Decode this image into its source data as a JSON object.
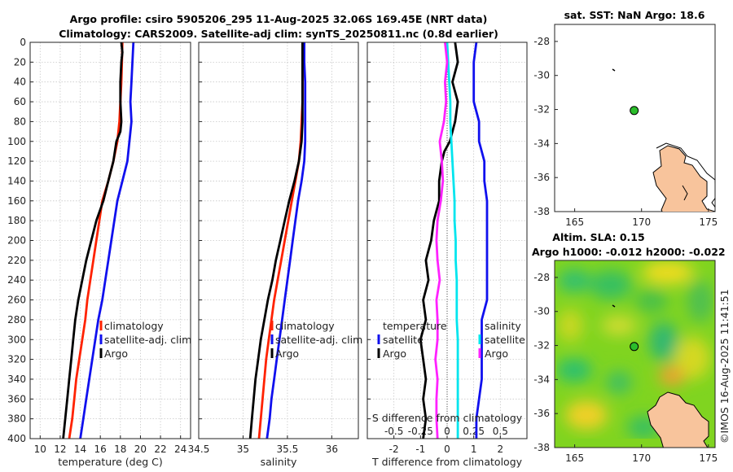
{
  "titles": {
    "line1": "Argo profile: csiro 5905206_295 11-Aug-2025 32.06S 169.45E (NRT data)",
    "line2": "Climatology: CARS2009. Satellite-adj clim: synTS_20250811.nc (0.8d earlier)",
    "sst": "sat. SST: NaN Argo: 18.6",
    "sla": "Altim. SLA: 0.15",
    "sla2": "Argo h1000: -0.012 h2000: -0.022",
    "credit": "©IMOS 16-Aug-2025 11:41:51"
  },
  "colors": {
    "climatology": "#ff2200",
    "satellite": "#1010ee",
    "argo": "#000000",
    "sal_diff": "#00e5ee",
    "temp_diff": "#ff22ff",
    "land": "#f8c49c",
    "float_marker": "#2bbd2b"
  },
  "chart_data": [
    {
      "type": "line",
      "name": "temperature",
      "xlabel": "temperature (deg C)",
      "ylabel": "",
      "xlim": [
        9,
        25
      ],
      "ylim": [
        400,
        0
      ],
      "xticks": [
        "10",
        "12",
        "14",
        "16",
        "18",
        "20",
        "22",
        "24"
      ],
      "yticks": [
        "0",
        "20",
        "40",
        "60",
        "80",
        "100",
        "120",
        "140",
        "160",
        "180",
        "200",
        "220",
        "240",
        "260",
        "280",
        "300",
        "320",
        "340",
        "360",
        "380",
        "400"
      ],
      "legend": [
        "climatology",
        "satellite-adj. clim",
        "Argo"
      ],
      "series": [
        {
          "name": "climatology",
          "color": "climatology",
          "depth": [
            0,
            20,
            40,
            60,
            80,
            100,
            120,
            140,
            160,
            180,
            200,
            220,
            240,
            260,
            280,
            300,
            320,
            340,
            360,
            380,
            400
          ],
          "values": [
            18.2,
            18.15,
            18.1,
            18.0,
            17.9,
            17.7,
            17.3,
            16.8,
            16.2,
            15.9,
            15.6,
            15.3,
            15.0,
            14.7,
            14.5,
            14.2,
            13.9,
            13.6,
            13.4,
            13.2,
            12.9
          ]
        },
        {
          "name": "satellite-adj. clim",
          "color": "satellite",
          "depth": [
            0,
            20,
            40,
            60,
            80,
            100,
            120,
            140,
            160,
            180,
            200,
            220,
            240,
            260,
            280,
            300,
            320,
            340,
            360,
            380,
            400
          ],
          "values": [
            19.3,
            19.2,
            19.1,
            19.0,
            19.1,
            18.9,
            18.7,
            18.2,
            17.7,
            17.4,
            17.1,
            16.8,
            16.5,
            16.2,
            15.8,
            15.5,
            15.2,
            14.9,
            14.6,
            14.3,
            14.0
          ]
        },
        {
          "name": "Argo",
          "color": "argo",
          "depth": [
            0,
            10,
            20,
            40,
            60,
            80,
            90,
            100,
            120,
            140,
            160,
            180,
            200,
            220,
            240,
            260,
            280,
            300,
            320,
            340,
            360,
            380,
            400
          ],
          "values": [
            18.1,
            18.2,
            18.1,
            18.0,
            18.0,
            18.1,
            18.0,
            17.6,
            17.3,
            16.8,
            16.3,
            15.6,
            15.1,
            14.6,
            14.2,
            13.8,
            13.5,
            13.3,
            13.1,
            12.9,
            12.7,
            12.5,
            12.3
          ]
        }
      ]
    },
    {
      "type": "line",
      "name": "salinity",
      "xlabel": "salinity",
      "ylabel": "",
      "xlim": [
        34.5,
        36.3
      ],
      "ylim": [
        400,
        0
      ],
      "xticks": [
        "34.5",
        "35",
        "35.5",
        "36"
      ],
      "legend": [
        "climatology",
        "satellite-adj. clim",
        "Argo"
      ],
      "series": [
        {
          "name": "climatology",
          "color": "climatology",
          "depth": [
            0,
            20,
            40,
            60,
            80,
            100,
            120,
            140,
            160,
            180,
            200,
            220,
            240,
            260,
            280,
            300,
            320,
            340,
            360,
            380,
            400
          ],
          "values": [
            35.67,
            35.67,
            35.67,
            35.67,
            35.66,
            35.65,
            35.63,
            35.59,
            35.55,
            35.51,
            35.47,
            35.43,
            35.39,
            35.35,
            35.32,
            35.29,
            35.26,
            35.24,
            35.22,
            35.2,
            35.18
          ]
        },
        {
          "name": "satellite-adj. clim",
          "color": "satellite",
          "depth": [
            0,
            20,
            40,
            60,
            80,
            100,
            120,
            140,
            160,
            180,
            200,
            220,
            240,
            260,
            280,
            300,
            320,
            340,
            360,
            380,
            400
          ],
          "values": [
            35.69,
            35.69,
            35.7,
            35.7,
            35.7,
            35.7,
            35.69,
            35.66,
            35.62,
            35.59,
            35.56,
            35.53,
            35.5,
            35.47,
            35.44,
            35.41,
            35.38,
            35.35,
            35.32,
            35.3,
            35.27
          ]
        },
        {
          "name": "Argo",
          "color": "argo",
          "depth": [
            0,
            20,
            40,
            60,
            80,
            100,
            120,
            140,
            160,
            180,
            200,
            220,
            240,
            260,
            280,
            300,
            320,
            340,
            360,
            380,
            400
          ],
          "values": [
            35.67,
            35.67,
            35.67,
            35.67,
            35.67,
            35.66,
            35.63,
            35.58,
            35.52,
            35.47,
            35.42,
            35.37,
            35.33,
            35.28,
            35.24,
            35.2,
            35.17,
            35.14,
            35.12,
            35.1,
            35.08
          ]
        }
      ]
    },
    {
      "type": "line",
      "name": "difference",
      "xlabel": "T difference from climatology",
      "xlabel2": "S difference from climatology",
      "xlim": [
        -3,
        3
      ],
      "ylim": [
        400,
        0
      ],
      "xticks": [
        "-2",
        "-1",
        "0",
        "1",
        "2"
      ],
      "xticks2": [
        "-0.5",
        "-0.25",
        "0",
        "0.25",
        "0.5"
      ],
      "legend_left_title": "temperature",
      "legend_left": [
        "satellite",
        "Argo"
      ],
      "legend_right_title": "salinity",
      "legend_right": [
        "satellite",
        "Argo"
      ],
      "series": [
        {
          "name": "T satellite",
          "color": "satellite",
          "depth": [
            0,
            20,
            40,
            60,
            80,
            100,
            120,
            140,
            160,
            180,
            200,
            220,
            240,
            260,
            280,
            300,
            320,
            340,
            360,
            380,
            400
          ],
          "values": [
            1.1,
            1.0,
            1.0,
            1.0,
            1.2,
            1.2,
            1.4,
            1.4,
            1.5,
            1.5,
            1.5,
            1.5,
            1.5,
            1.5,
            1.3,
            1.3,
            1.3,
            1.3,
            1.2,
            1.1,
            1.1
          ]
        },
        {
          "name": "T Argo",
          "color": "argo",
          "depth": [
            0,
            20,
            40,
            60,
            80,
            100,
            110,
            120,
            140,
            160,
            180,
            200,
            220,
            240,
            260,
            280,
            300,
            320,
            340,
            360,
            380,
            400
          ],
          "values": [
            0.3,
            0.4,
            0.2,
            0.4,
            0.3,
            0.1,
            -0.1,
            -0.2,
            -0.3,
            -0.3,
            -0.5,
            -0.6,
            -0.8,
            -0.7,
            -0.9,
            -0.8,
            -1.0,
            -0.9,
            -0.8,
            -0.9,
            -0.8,
            -0.9
          ]
        },
        {
          "name": "S satellite",
          "color": "sal_diff",
          "depth": [
            0,
            20,
            40,
            60,
            80,
            100,
            120,
            140,
            160,
            180,
            200,
            220,
            240,
            260,
            280,
            300,
            320,
            340,
            360,
            380,
            400
          ],
          "values": [
            0.0,
            0.01,
            0.02,
            0.03,
            0.03,
            0.04,
            0.05,
            0.06,
            0.07,
            0.07,
            0.08,
            0.08,
            0.09,
            0.09,
            0.09,
            0.1,
            0.1,
            0.1,
            0.1,
            0.1,
            0.1
          ]
        },
        {
          "name": "S Argo",
          "color": "temp_diff",
          "depth": [
            0,
            20,
            40,
            60,
            80,
            100,
            120,
            140,
            160,
            180,
            200,
            220,
            240,
            260,
            280,
            300,
            320,
            340,
            360,
            380,
            400
          ],
          "values": [
            -0.02,
            0.0,
            -0.02,
            -0.01,
            -0.03,
            -0.07,
            -0.05,
            -0.04,
            -0.06,
            -0.09,
            -0.1,
            -0.09,
            -0.07,
            -0.1,
            -0.09,
            -0.09,
            -0.11,
            -0.09,
            -0.1,
            -0.1,
            -0.09
          ]
        }
      ]
    },
    {
      "type": "map",
      "name": "sst_map",
      "title": "sat. SST: NaN Argo: 18.6",
      "xlim": [
        163.5,
        175.5
      ],
      "ylim": [
        -38,
        -27
      ],
      "xticks": [
        "165",
        "170",
        "175"
      ],
      "yticks": [
        "-28",
        "-30",
        "-32",
        "-34",
        "-36",
        "-38"
      ],
      "float_position": {
        "lon": 169.45,
        "lat": -32.06
      }
    },
    {
      "type": "map",
      "name": "sla_map",
      "title": "Altim. SLA: 0.15",
      "xlim": [
        163.5,
        175.5
      ],
      "ylim": [
        -38,
        -27
      ],
      "xticks": [
        "165",
        "170",
        "175"
      ],
      "yticks": [
        "-28",
        "-30",
        "-32",
        "-34",
        "-36",
        "-38"
      ],
      "float_position": {
        "lon": 169.45,
        "lat": -32.06
      }
    }
  ]
}
